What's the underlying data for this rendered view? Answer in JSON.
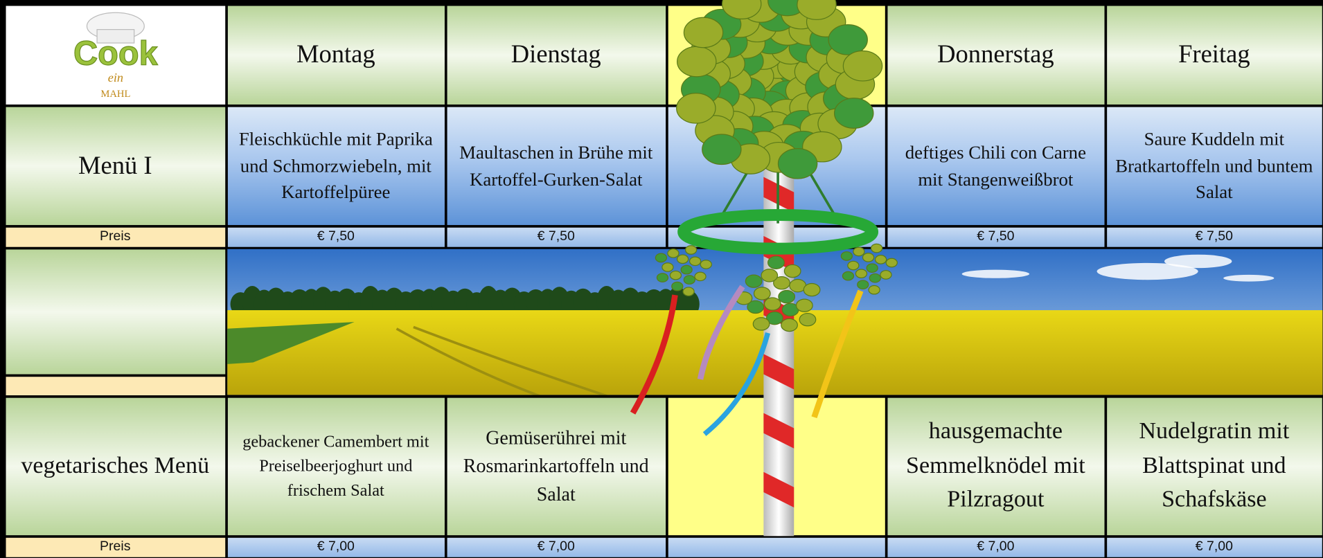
{
  "logo": {
    "name": "Cook",
    "tagline": "ein",
    "footer": "MAHL"
  },
  "days": [
    "Montag",
    "Dienstag",
    "Donnerstag",
    "Freitag"
  ],
  "menus": [
    {
      "label": "Menü I",
      "price_label": "Preis",
      "items": [
        "Fleischküchle mit Paprika und Schmorzwiebeln, mit Kartoffelpüree",
        "Maultaschen in Brühe mit Kartoffel-Gurken-Salat",
        "deftiges Chili con Carne mit Stangenweißbrot",
        "Saure Kuddeln mit Bratkartoffeln und buntem Salat"
      ],
      "prices": [
        "€ 7,50",
        "€ 7,50",
        "€ 7,50",
        "€ 7,50"
      ]
    },
    {
      "label": "vegetarisches Menü",
      "price_label": "Preis",
      "items": [
        "gebackener Camembert mit Preiselbeerjoghurt und frischem Salat",
        "Gemüserührei mit Rosmarinkartoffeln und Salat",
        "hausgemachte Semmelknödel mit Pilzragout",
        "Nudelgratin mit Blattspinat und Schafskäse"
      ],
      "prices": [
        "€ 7,00",
        "€ 7,00",
        "€ 7,00",
        "€ 7,00"
      ]
    }
  ]
}
